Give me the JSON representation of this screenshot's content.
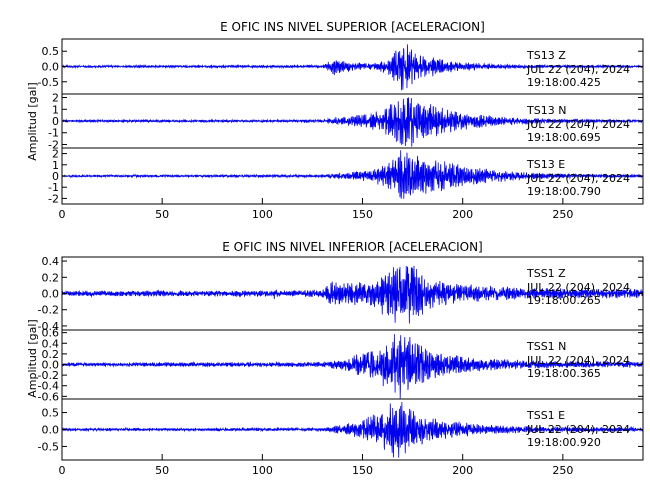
{
  "chart_data": [
    {
      "type": "line",
      "title": "E OFIC INS NIVEL SUPERIOR [ACELERACION]",
      "ylabel": "Amplitud [gal]",
      "xlim": [
        0,
        290
      ],
      "xticks": [
        0,
        50,
        100,
        150,
        200,
        250
      ],
      "traces": [
        {
          "station": "TS13",
          "component": "Z",
          "date": "JUL 22 (204), 2024",
          "time": "19:18:00.425",
          "ylim": [
            -0.9,
            0.9
          ],
          "yticks": [
            -0.5,
            0.0,
            0.5
          ],
          "ytick_labels": [
            "-0.5",
            "0.0",
            "0.5"
          ],
          "noise": 0.03,
          "envelope": [
            [
              0,
              0.03
            ],
            [
              130,
              0.04
            ],
            [
              136,
              0.28
            ],
            [
              142,
              0.15
            ],
            [
              150,
              0.1
            ],
            [
              158,
              0.12
            ],
            [
              165,
              0.35
            ],
            [
              170,
              0.85
            ],
            [
              175,
              0.5
            ],
            [
              180,
              0.35
            ],
            [
              190,
              0.2
            ],
            [
              200,
              0.12
            ],
            [
              215,
              0.07
            ],
            [
              240,
              0.04
            ],
            [
              290,
              0.03
            ]
          ]
        },
        {
          "station": "TS13",
          "component": "N",
          "date": "JUL 22 (204), 2024",
          "time": "19:18:00.695",
          "ylim": [
            -2.3,
            2.3
          ],
          "yticks": [
            -2,
            -1,
            0,
            1,
            2
          ],
          "ytick_labels": [
            "-2",
            "-1",
            "0",
            "1",
            "2"
          ],
          "noise": 0.08,
          "envelope": [
            [
              0,
              0.08
            ],
            [
              130,
              0.1
            ],
            [
              140,
              0.35
            ],
            [
              150,
              0.5
            ],
            [
              160,
              0.8
            ],
            [
              168,
              1.8
            ],
            [
              172,
              2.2
            ],
            [
              177,
              1.6
            ],
            [
              185,
              1.2
            ],
            [
              195,
              0.8
            ],
            [
              210,
              0.45
            ],
            [
              225,
              0.3
            ],
            [
              245,
              0.15
            ],
            [
              290,
              0.1
            ]
          ]
        },
        {
          "station": "TS13",
          "component": "E",
          "date": "JUL 22 (204), 2024",
          "time": "19:18:00.790",
          "ylim": [
            -2.5,
            2.5
          ],
          "yticks": [
            -2,
            -1,
            0,
            1,
            2
          ],
          "ytick_labels": [
            "-2",
            "-1",
            "0",
            "1",
            "2"
          ],
          "noise": 0.08,
          "envelope": [
            [
              0,
              0.08
            ],
            [
              130,
              0.1
            ],
            [
              142,
              0.3
            ],
            [
              155,
              0.5
            ],
            [
              163,
              1.0
            ],
            [
              170,
              2.3
            ],
            [
              175,
              1.8
            ],
            [
              182,
              1.5
            ],
            [
              195,
              1.0
            ],
            [
              210,
              0.6
            ],
            [
              230,
              0.3
            ],
            [
              255,
              0.15
            ],
            [
              290,
              0.1
            ]
          ]
        }
      ]
    },
    {
      "type": "line",
      "title": "E OFIC INS NIVEL INFERIOR [ACELERACION]",
      "ylabel": "Amplitud [gal]",
      "xlim": [
        0,
        290
      ],
      "xticks": [
        0,
        50,
        100,
        150,
        200,
        250
      ],
      "traces": [
        {
          "station": "TSS1",
          "component": "Z",
          "date": "JUL 22 (204), 2024",
          "time": "19:18:00.265",
          "ylim": [
            -0.45,
            0.45
          ],
          "yticks": [
            -0.4,
            -0.2,
            0.0,
            0.2,
            0.4
          ],
          "ytick_labels": [
            "-0.4",
            "-0.2",
            "0.0",
            "0.2",
            "0.4"
          ],
          "noise": 0.025,
          "envelope": [
            [
              0,
              0.025
            ],
            [
              20,
              0.03
            ],
            [
              105,
              0.03
            ],
            [
              106,
              0.08
            ],
            [
              108,
              0.03
            ],
            [
              130,
              0.04
            ],
            [
              136,
              0.15
            ],
            [
              145,
              0.12
            ],
            [
              155,
              0.15
            ],
            [
              165,
              0.3
            ],
            [
              170,
              0.42
            ],
            [
              175,
              0.3
            ],
            [
              185,
              0.15
            ],
            [
              200,
              0.1
            ],
            [
              230,
              0.06
            ],
            [
              290,
              0.05
            ]
          ]
        },
        {
          "station": "TSS1",
          "component": "N",
          "date": "JUL 22 (204), 2024",
          "time": "19:18:00.365",
          "ylim": [
            -0.65,
            0.65
          ],
          "yticks": [
            -0.6,
            -0.4,
            -0.2,
            0.0,
            0.2,
            0.4,
            0.6
          ],
          "ytick_labels": [
            "-0.6",
            "-0.4",
            "-0.2",
            "0.0",
            "0.2",
            "0.4",
            "0.6"
          ],
          "noise": 0.03,
          "envelope": [
            [
              0,
              0.03
            ],
            [
              130,
              0.04
            ],
            [
              140,
              0.1
            ],
            [
              150,
              0.2
            ],
            [
              160,
              0.35
            ],
            [
              168,
              0.55
            ],
            [
              172,
              0.5
            ],
            [
              178,
              0.35
            ],
            [
              190,
              0.18
            ],
            [
              210,
              0.1
            ],
            [
              240,
              0.06
            ],
            [
              290,
              0.05
            ]
          ]
        },
        {
          "station": "TSS1",
          "component": "E",
          "date": "JUL 22 (204), 2024",
          "time": "19:18:00.920",
          "ylim": [
            -0.9,
            0.9
          ],
          "yticks": [
            -0.5,
            0.0,
            0.5
          ],
          "ytick_labels": [
            "-0.5",
            "0.0",
            "0.5"
          ],
          "noise": 0.03,
          "envelope": [
            [
              0,
              0.03
            ],
            [
              130,
              0.04
            ],
            [
              140,
              0.12
            ],
            [
              150,
              0.25
            ],
            [
              160,
              0.5
            ],
            [
              168,
              0.8
            ],
            [
              172,
              0.65
            ],
            [
              178,
              0.45
            ],
            [
              190,
              0.25
            ],
            [
              210,
              0.12
            ],
            [
              240,
              0.07
            ],
            [
              290,
              0.05
            ]
          ]
        }
      ]
    }
  ],
  "colors": {
    "trace": "#0000ee",
    "axes": "#000000"
  }
}
